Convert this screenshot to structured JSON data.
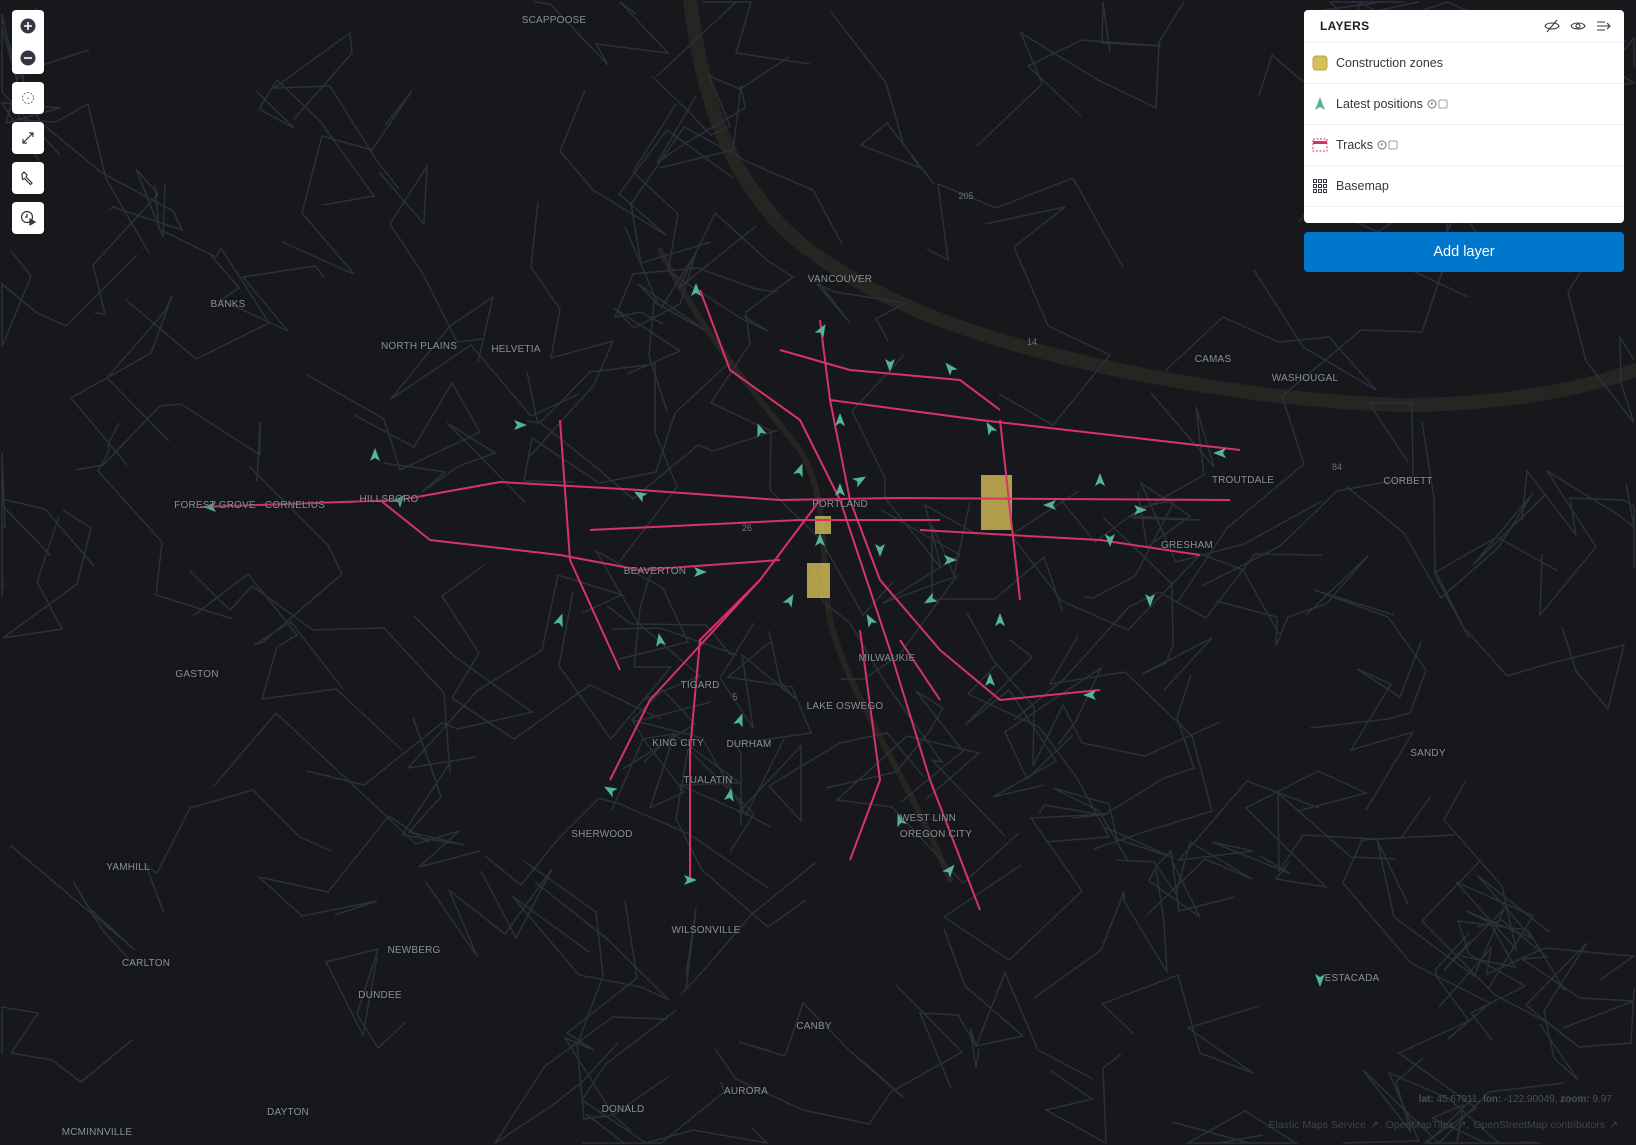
{
  "map": {
    "background": "#16181c",
    "track_color": "#d6336c",
    "position_color": "#54b399",
    "zone_color": "#d6bf57",
    "cities": [
      {
        "name": "SCAPPOOSE",
        "lat": 45.754,
        "lon": -122.877
      },
      {
        "name": "VANCOUVER"
      },
      {
        "name": "BANKS"
      },
      {
        "name": "NORTH PLAINS"
      },
      {
        "name": "HELVETIA"
      },
      {
        "name": "CAMAS"
      },
      {
        "name": "WASHOUGAL"
      },
      {
        "name": "TROUTDALE"
      },
      {
        "name": "CORBETT"
      },
      {
        "name": "FOREST GROVE"
      },
      {
        "name": "CORNELIUS"
      },
      {
        "name": "HILLSBORO"
      },
      {
        "name": "PORTLAND"
      },
      {
        "name": "BEAVERTON"
      },
      {
        "name": "GRESHAM"
      },
      {
        "name": "GASTON"
      },
      {
        "name": "MILWAUKIE"
      },
      {
        "name": "TIGARD"
      },
      {
        "name": "LAKE OSWEGO"
      },
      {
        "name": "KING CITY"
      },
      {
        "name": "DURHAM"
      },
      {
        "name": "TUALATIN"
      },
      {
        "name": "SHERWOOD"
      },
      {
        "name": "WEST LINN"
      },
      {
        "name": "OREGON CITY"
      },
      {
        "name": "SANDY"
      },
      {
        "name": "YAMHILL"
      },
      {
        "name": "WILSONVILLE"
      },
      {
        "name": "ESTACADA"
      },
      {
        "name": "NEWBERG"
      },
      {
        "name": "CARLTON"
      },
      {
        "name": "DUNDEE"
      },
      {
        "name": "CANBY"
      },
      {
        "name": "AURORA"
      },
      {
        "name": "DONALD"
      },
      {
        "name": "DAYTON"
      },
      {
        "name": "MCMINNVILLE"
      }
    ],
    "road_shields": [
      "205",
      "14",
      "84",
      "26",
      "5"
    ]
  },
  "toolbar": {
    "zoom_in": "plus-icon",
    "zoom_out": "minus-icon",
    "locate": "crosshair-icon",
    "fit": "expand-icon",
    "tools": "wrench-icon",
    "timeslider": "clock-play-icon"
  },
  "layers_panel": {
    "title": "LAYERS",
    "header_icons": [
      "eye-closed-icon",
      "eye-icon",
      "collapse-icon"
    ],
    "layers": [
      {
        "label": "Construction zones",
        "icon": "filled-square-icon"
      },
      {
        "label": "Latest positions",
        "icon": "arrow-marker-icon",
        "time_aware": true
      },
      {
        "label": "Tracks",
        "icon": "line-icon",
        "time_aware": true
      },
      {
        "label": "Basemap",
        "icon": "grid-icon"
      }
    ],
    "add_layer": "Add layer"
  },
  "status": {
    "lat_label": "lat:",
    "lat": "45.67911,",
    "lon_label": "lon:",
    "lon": "-122.90049,",
    "zoom_label": "zoom:",
    "zoom": "9.97"
  },
  "attribution": [
    "Elastic Maps Service",
    "OpenMapTiles",
    "OpenStreetMap contributors"
  ]
}
